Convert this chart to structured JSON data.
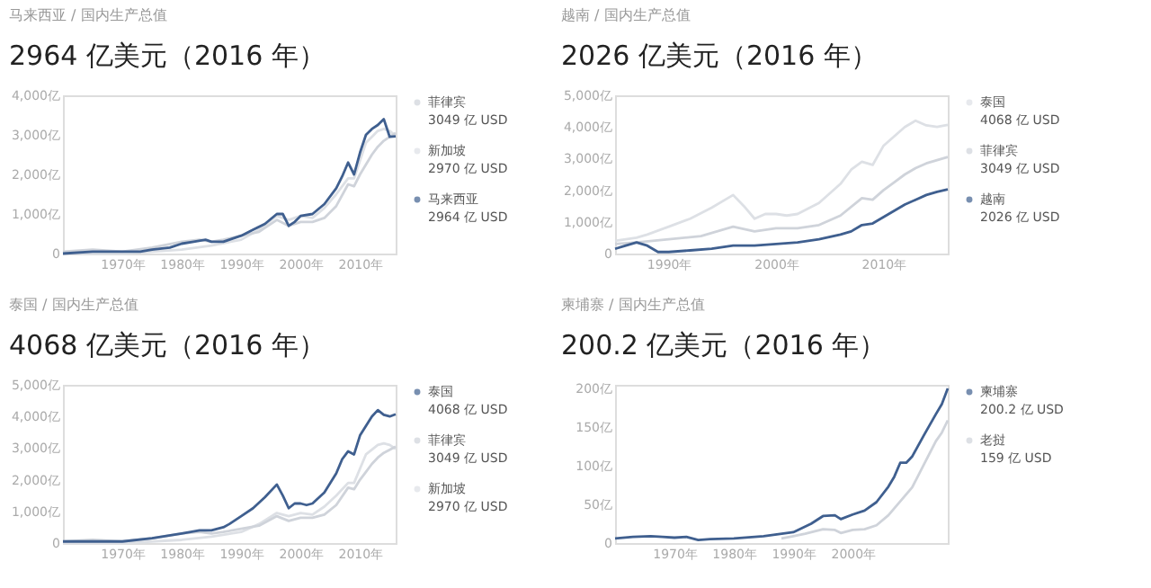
{
  "chart_data": [
    {
      "type": "line",
      "subtitle": "马来西亚 / 国内生产总值",
      "title": "2964 亿美元（2016 年）",
      "legend": "right",
      "line_style": "solid",
      "xlim": [
        1960,
        2016
      ],
      "xticks": [
        {
          "value": 1970,
          "label": "1970年"
        },
        {
          "value": 1980,
          "label": "1980年"
        },
        {
          "value": 1990,
          "label": "1990年"
        },
        {
          "value": 2000,
          "label": "2000年"
        },
        {
          "value": 2010,
          "label": "2010年"
        }
      ],
      "ylim": [
        0,
        4000
      ],
      "yticks": [
        0,
        {
          "value": 1000,
          "label": "1,000亿"
        },
        {
          "value": 2000,
          "label": "2,000亿"
        },
        {
          "value": 3000,
          "label": "3,000亿"
        },
        {
          "value": 4000,
          "label": "4,000亿"
        }
      ],
      "annotations": [
        "3049 亿 USD",
        "2970 亿 USD",
        "2964 亿 USD"
      ],
      "series": [
        {
          "name": "菲律宾",
          "color": "#cfd3da",
          "x": [
            1960,
            1965,
            1970,
            1975,
            1980,
            1983,
            1985,
            1987,
            1990,
            1993,
            1996,
            1998,
            2000,
            2002,
            2004,
            2006,
            2008,
            2009,
            2010,
            2011,
            2012,
            2013,
            2014,
            2015,
            2016
          ],
          "values": [
            50,
            100,
            50,
            150,
            300,
            350,
            300,
            350,
            450,
            550,
            850,
            700,
            800,
            800,
            900,
            1200,
            1750,
            1700,
            2000,
            2250,
            2500,
            2700,
            2850,
            2950,
            3049
          ]
        },
        {
          "name": "新加坡",
          "color": "#dde0e5",
          "x": [
            1960,
            1965,
            1970,
            1975,
            1980,
            1985,
            1990,
            1993,
            1996,
            1998,
            2000,
            2002,
            2004,
            2006,
            2008,
            2009,
            2010,
            2011,
            2012,
            2013,
            2014,
            2015,
            2016
          ],
          "values": [
            0,
            0,
            0,
            50,
            100,
            200,
            350,
            600,
            950,
            850,
            950,
            900,
            1150,
            1500,
            1900,
            1900,
            2350,
            2800,
            2950,
            3100,
            3150,
            3100,
            2970
          ]
        },
        {
          "name": "马来西亚",
          "color": "#3f5f8f",
          "x": [
            1960,
            1965,
            1970,
            1973,
            1975,
            1978,
            1980,
            1982,
            1984,
            1985,
            1986,
            1987,
            1988,
            1990,
            1992,
            1994,
            1996,
            1997,
            1998,
            1999,
            2000,
            2002,
            2004,
            2006,
            2007,
            2008,
            2009,
            2010,
            2011,
            2012,
            2013,
            2014,
            2015,
            2016
          ],
          "values": [
            0,
            50,
            50,
            50,
            100,
            150,
            250,
            300,
            350,
            300,
            300,
            300,
            350,
            450,
            600,
            750,
            1000,
            1000,
            700,
            800,
            950,
            1000,
            1250,
            1650,
            1950,
            2300,
            2000,
            2550,
            3000,
            3150,
            3250,
            3400,
            2950,
            2964
          ]
        }
      ]
    },
    {
      "type": "line",
      "subtitle": "越南 / 国内生产总值",
      "title": "2026 亿美元（2016 年）",
      "legend": "right",
      "line_style": "solid",
      "xlim": [
        1985,
        2016
      ],
      "xticks": [
        {
          "value": 1990,
          "label": "1990年"
        },
        {
          "value": 2000,
          "label": "2000年"
        },
        {
          "value": 2010,
          "label": "2010年"
        }
      ],
      "ylim": [
        0,
        5000
      ],
      "yticks": [
        0,
        {
          "value": 1000,
          "label": "1,000亿"
        },
        {
          "value": 2000,
          "label": "2,000亿"
        },
        {
          "value": 3000,
          "label": "3,000亿"
        },
        {
          "value": 4000,
          "label": "4,000亿"
        },
        {
          "value": 5000,
          "label": "5,000亿"
        }
      ],
      "annotations": [
        "4068 亿 USD",
        "3049 亿 USD",
        "2026 亿 USD"
      ],
      "series": [
        {
          "name": "泰国",
          "color": "#dde0e5",
          "x": [
            1985,
            1987,
            1988,
            1990,
            1992,
            1994,
            1996,
            1997,
            1998,
            1999,
            2000,
            2001,
            2002,
            2004,
            2006,
            2007,
            2008,
            2009,
            2010,
            2011,
            2012,
            2013,
            2014,
            2015,
            2016
          ],
          "values": [
            400,
            500,
            600,
            850,
            1100,
            1450,
            1850,
            1500,
            1100,
            1250,
            1250,
            1200,
            1250,
            1600,
            2200,
            2650,
            2900,
            2800,
            3400,
            3700,
            4000,
            4200,
            4050,
            4000,
            4068
          ]
        },
        {
          "name": "菲律宾",
          "color": "#cfd3da",
          "x": [
            1985,
            1987,
            1990,
            1993,
            1996,
            1998,
            2000,
            2002,
            2004,
            2006,
            2008,
            2009,
            2010,
            2011,
            2012,
            2013,
            2014,
            2015,
            2016
          ],
          "values": [
            300,
            350,
            450,
            550,
            850,
            700,
            800,
            800,
            900,
            1200,
            1750,
            1700,
            2000,
            2250,
            2500,
            2700,
            2850,
            2950,
            3049
          ]
        },
        {
          "name": "越南",
          "color": "#3f5f8f",
          "x": [
            1985,
            1986,
            1987,
            1988,
            1989,
            1990,
            1992,
            1994,
            1996,
            1998,
            2000,
            2002,
            2004,
            2006,
            2007,
            2008,
            2009,
            2010,
            2011,
            2012,
            2013,
            2014,
            2015,
            2016
          ],
          "values": [
            150,
            250,
            350,
            250,
            50,
            50,
            100,
            150,
            250,
            250,
            300,
            350,
            450,
            600,
            700,
            900,
            950,
            1150,
            1350,
            1550,
            1700,
            1850,
            1950,
            2026
          ]
        }
      ]
    },
    {
      "type": "line",
      "subtitle": "泰国 / 国内生产总值",
      "title": "4068 亿美元（2016 年）",
      "legend": "right",
      "line_style": "solid",
      "xlim": [
        1960,
        2016
      ],
      "xticks": [
        {
          "value": 1970,
          "label": "1970年"
        },
        {
          "value": 1980,
          "label": "1980年"
        },
        {
          "value": 1990,
          "label": "1990年"
        },
        {
          "value": 2000,
          "label": "2000年"
        },
        {
          "value": 2010,
          "label": "2010年"
        }
      ],
      "ylim": [
        0,
        5000
      ],
      "yticks": [
        0,
        {
          "value": 1000,
          "label": "1,000亿"
        },
        {
          "value": 2000,
          "label": "2,000亿"
        },
        {
          "value": 3000,
          "label": "3,000亿"
        },
        {
          "value": 4000,
          "label": "4,000亿"
        },
        {
          "value": 5000,
          "label": "5,000亿"
        }
      ],
      "annotations": [
        "4068 亿 USD",
        "3049 亿 USD",
        "2970 亿 USD"
      ],
      "series": [
        {
          "name": "泰国",
          "color": "#3f5f8f",
          "x": [
            1960,
            1965,
            1970,
            1975,
            1980,
            1983,
            1985,
            1987,
            1988,
            1990,
            1992,
            1994,
            1996,
            1997,
            1998,
            1999,
            2000,
            2001,
            2002,
            2004,
            2006,
            2007,
            2008,
            2009,
            2010,
            2011,
            2012,
            2013,
            2014,
            2015,
            2016
          ],
          "values": [
            50,
            50,
            50,
            150,
            300,
            400,
            400,
            500,
            600,
            850,
            1100,
            1450,
            1850,
            1500,
            1100,
            1250,
            1250,
            1200,
            1250,
            1600,
            2200,
            2650,
            2900,
            2800,
            3400,
            3700,
            4000,
            4200,
            4050,
            4000,
            4068
          ]
        },
        {
          "name": "菲律宾",
          "color": "#cfd3da",
          "x": [
            1960,
            1965,
            1970,
            1975,
            1980,
            1983,
            1985,
            1987,
            1990,
            1993,
            1996,
            1998,
            2000,
            2002,
            2004,
            2006,
            2008,
            2009,
            2010,
            2011,
            2012,
            2013,
            2014,
            2015,
            2016
          ],
          "values": [
            50,
            100,
            50,
            150,
            300,
            350,
            300,
            350,
            450,
            550,
            850,
            700,
            800,
            800,
            900,
            1200,
            1750,
            1700,
            2000,
            2250,
            2500,
            2700,
            2850,
            2950,
            3049
          ]
        },
        {
          "name": "新加坡",
          "color": "#dde0e5",
          "x": [
            1960,
            1965,
            1970,
            1975,
            1980,
            1985,
            1990,
            1993,
            1996,
            1998,
            2000,
            2002,
            2004,
            2006,
            2008,
            2009,
            2010,
            2011,
            2012,
            2013,
            2014,
            2015,
            2016
          ],
          "values": [
            0,
            0,
            0,
            50,
            100,
            200,
            350,
            600,
            950,
            850,
            950,
            900,
            1150,
            1500,
            1900,
            1900,
            2350,
            2800,
            2950,
            3100,
            3150,
            3100,
            2970
          ]
        }
      ]
    },
    {
      "type": "line",
      "subtitle": "柬埔寨 / 国内生产总值",
      "title": "200.2 亿美元（2016 年）",
      "legend": "right",
      "line_style": "solid",
      "xlim": [
        1960,
        2016
      ],
      "xticks": [
        {
          "value": 1970,
          "label": "1970年"
        },
        {
          "value": 1980,
          "label": "1980年"
        },
        {
          "value": 1990,
          "label": "1990年"
        },
        {
          "value": 2000,
          "label": "2000年"
        }
      ],
      "ylim": [
        0,
        205
      ],
      "yticks": [
        0,
        {
          "value": 50,
          "label": "50亿"
        },
        {
          "value": 100,
          "label": "100亿"
        },
        {
          "value": 150,
          "label": "150亿"
        },
        {
          "value": 200,
          "label": "200亿"
        }
      ],
      "annotations": [
        "200.2 亿 USD",
        "159 亿 USD"
      ],
      "series": [
        {
          "name": "柬埔寨",
          "color": "#3f5f8f",
          "x": [
            1960,
            1963,
            1966,
            1968,
            1970,
            1972,
            1974,
            1976,
            1980,
            1985,
            1990,
            1993,
            1995,
            1997,
            1998,
            2000,
            2002,
            2004,
            2006,
            2007,
            2008,
            2009,
            2010,
            2012,
            2014,
            2015,
            2016
          ],
          "values": [
            6,
            8,
            9,
            8,
            7,
            8,
            4,
            5,
            6,
            9,
            14,
            25,
            35,
            36,
            31,
            37,
            42,
            53,
            73,
            86,
            104,
            104,
            112,
            140,
            167,
            180,
            200.2
          ]
        },
        {
          "name": "老挝",
          "color": "#cfd3da",
          "x": [
            1988,
            1990,
            1992,
            1995,
            1997,
            1998,
            2000,
            2002,
            2004,
            2006,
            2008,
            2010,
            2012,
            2014,
            2015,
            2016
          ],
          "values": [
            6,
            9,
            12,
            18,
            17,
            13,
            17,
            18,
            23,
            36,
            54,
            72,
            102,
            132,
            143,
            159
          ]
        }
      ]
    }
  ]
}
